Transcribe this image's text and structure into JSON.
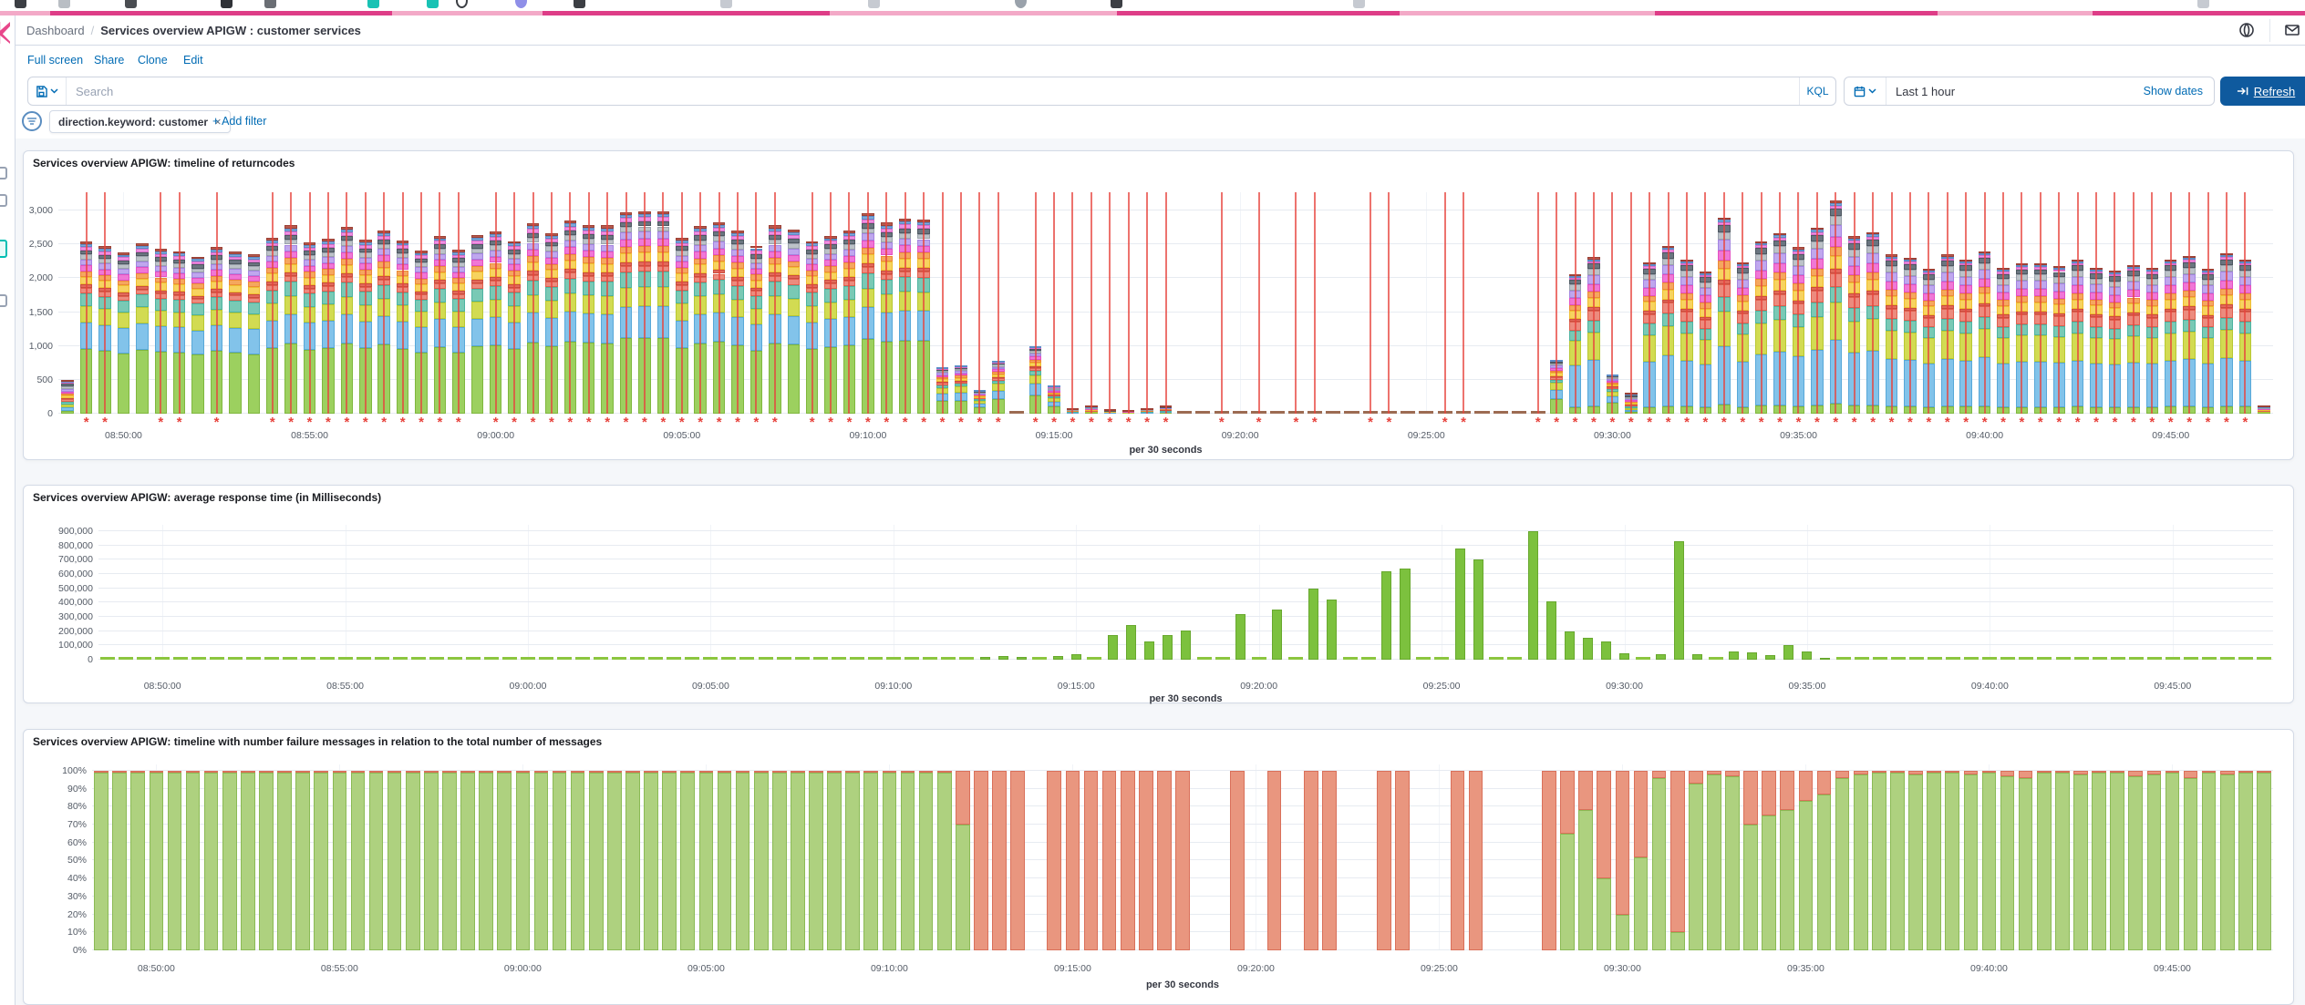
{
  "header": {
    "breadcrumb_root": "Dashboard",
    "breadcrumb_separator": "/",
    "breadcrumb_current": "Services overview APIGW : customer services"
  },
  "menu": {
    "items": [
      "Full screen",
      "Share",
      "Clone",
      "Edit"
    ]
  },
  "search": {
    "placeholder": "Search",
    "language": "KQL"
  },
  "timepicker": {
    "value": "Last 1 hour",
    "show_dates_label": "Show dates",
    "refresh_label": "Refresh"
  },
  "filters": {
    "pill": "direction.keyword: customer",
    "remove_icon": "×",
    "add_label": "+ Add filter"
  },
  "icons": {
    "saved_query": "floppy",
    "chevron": "chevron-down",
    "calendar": "calendar",
    "refresh": "arrow-bar",
    "globe": "circle",
    "envelope": "envelope",
    "filter": "filter-lines",
    "close": "×"
  },
  "colors": {
    "accent_pink": "#DE3D87",
    "link_blue": "#006BB4",
    "refresh_button": "#0F5A9E",
    "panel_border": "#D3DAE6",
    "dashboard_bg": "#F5F7FA",
    "annotation_red": "#E7443E"
  },
  "chart_data": [
    {
      "type": "bar",
      "stacked": true,
      "title": "Services overview APIGW: timeline of returncodes",
      "x_axis_title": "per 30 seconds",
      "start_time": "08:48:30",
      "interval_seconds": 30,
      "ymax": 3270,
      "annotation_marker": "*",
      "y_ticks": [
        [
          0,
          "0"
        ],
        [
          500,
          "500"
        ],
        [
          1000,
          "1,000"
        ],
        [
          1500,
          "1,500"
        ],
        [
          2000,
          "2,000"
        ],
        [
          2500,
          "2,500"
        ],
        [
          3000,
          "3,000"
        ]
      ],
      "x_ticks": [
        [
          3,
          "08:50:00"
        ],
        [
          13,
          "08:55:00"
        ],
        [
          23,
          "09:00:00"
        ],
        [
          33,
          "09:05:00"
        ],
        [
          43,
          "09:10:00"
        ],
        [
          53,
          "09:15:00"
        ],
        [
          63,
          "09:20:00"
        ],
        [
          73,
          "09:25:00"
        ],
        [
          83,
          "09:30:00"
        ],
        [
          93,
          "09:35:00"
        ],
        [
          103,
          "09:40:00"
        ],
        [
          113,
          "09:45:00"
        ]
      ],
      "series_palette": [
        {
          "name": "2xx-green",
          "fill": "#9CD05F",
          "border": "#7FB73E"
        },
        {
          "name": "lightblue",
          "fill": "#82C3EA",
          "border": "#58A8D8"
        },
        {
          "name": "olive",
          "fill": "#D2DB52",
          "border": "#B8C832"
        },
        {
          "name": "teal",
          "fill": "#79C9B5",
          "border": "#4EB3A0"
        },
        {
          "name": "salmon",
          "fill": "#EC8B7E",
          "border": "#E0604F"
        },
        {
          "name": "rose",
          "fill": "#E2695A",
          "border": "#C94C3E"
        },
        {
          "name": "yellow",
          "fill": "#F7D35F",
          "border": "#EFBE30"
        },
        {
          "name": "orange",
          "fill": "#F5A75E",
          "border": "#EC8A38"
        },
        {
          "name": "magenta",
          "fill": "#F077D6",
          "border": "#E351C2"
        },
        {
          "name": "lavender",
          "fill": "#BFA7EE",
          "border": "#A385E0"
        },
        {
          "name": "gray",
          "fill": "#BCC2C8",
          "border": "#9AA2AB"
        },
        {
          "name": "slate",
          "fill": "#6A7580",
          "border": "#4E5861"
        },
        {
          "name": "pink",
          "fill": "#EE92E2",
          "border": "#D86CC9"
        },
        {
          "name": "steel",
          "fill": "#7FA8D9",
          "border": "#5B8CC8"
        },
        {
          "name": "maroon",
          "fill": "#B55A4E",
          "border": "#9C4136"
        }
      ],
      "profiles": {
        "A": [
          0.375,
          0.155,
          0.095,
          0.075,
          0.03,
          0.02,
          0.045,
          0.033,
          0.035,
          0.035,
          0.027,
          0.025,
          0.02,
          0.015,
          0.015
        ],
        "B": [
          0.045,
          0.3,
          0.175,
          0.075,
          0.065,
          0.02,
          0.06,
          0.04,
          0.05,
          0.055,
          0.04,
          0.035,
          0.015,
          0.012,
          0.013
        ],
        "M": [
          0.28,
          0.17,
          0.13,
          0.06,
          0.05,
          0.02,
          0.06,
          0.04,
          0.05,
          0.05,
          0.04,
          0.03,
          0.01,
          0.01,
          0.0
        ],
        "S": [
          0.1,
          0.11,
          0.09,
          0.07,
          0.08,
          0.04,
          0.08,
          0.06,
          0.07,
          0.07,
          0.08,
          0.08,
          0.04,
          0.03,
          0.02
        ]
      },
      "bars": [
        [
          480,
          "S",
          0
        ],
        [
          2540,
          "A",
          1
        ],
        [
          2470,
          "A",
          1
        ],
        [
          2380,
          "A",
          0
        ],
        [
          2510,
          "A",
          0
        ],
        [
          2430,
          "A",
          1
        ],
        [
          2400,
          "A",
          1
        ],
        [
          2320,
          "A",
          0
        ],
        [
          2460,
          "A",
          1
        ],
        [
          2390,
          "A",
          0
        ],
        [
          2350,
          "A",
          0
        ],
        [
          2600,
          "A",
          1
        ],
        [
          2780,
          "A",
          1
        ],
        [
          2530,
          "A",
          1
        ],
        [
          2580,
          "A",
          1
        ],
        [
          2760,
          "A",
          1
        ],
        [
          2570,
          "A",
          1
        ],
        [
          2710,
          "A",
          1
        ],
        [
          2560,
          "A",
          1
        ],
        [
          2410,
          "A",
          1
        ],
        [
          2630,
          "A",
          1
        ],
        [
          2420,
          "A",
          1
        ],
        [
          2640,
          "A",
          0
        ],
        [
          2690,
          "A",
          1
        ],
        [
          2550,
          "A",
          1
        ],
        [
          2810,
          "A",
          1
        ],
        [
          2670,
          "A",
          1
        ],
        [
          2850,
          "A",
          1
        ],
        [
          2790,
          "A",
          1
        ],
        [
          2780,
          "A",
          1
        ],
        [
          2980,
          "A",
          1
        ],
        [
          2990,
          "A",
          1
        ],
        [
          2990,
          "A",
          1
        ],
        [
          2600,
          "A",
          1
        ],
        [
          2770,
          "A",
          1
        ],
        [
          2830,
          "A",
          1
        ],
        [
          2700,
          "A",
          1
        ],
        [
          2480,
          "A",
          1
        ],
        [
          2780,
          "A",
          1
        ],
        [
          2720,
          "A",
          0
        ],
        [
          2550,
          "A",
          1
        ],
        [
          2630,
          "A",
          1
        ],
        [
          2700,
          "A",
          1
        ],
        [
          2960,
          "A",
          1
        ],
        [
          2820,
          "A",
          1
        ],
        [
          2880,
          "A",
          1
        ],
        [
          2870,
          "A",
          1
        ],
        [
          660,
          "M",
          1
        ],
        [
          690,
          "M",
          1
        ],
        [
          330,
          "M",
          1
        ],
        [
          760,
          "M",
          1
        ],
        [
          20,
          "D",
          0
        ],
        [
          980,
          "M",
          1
        ],
        [
          390,
          "M",
          1
        ],
        [
          60,
          "S",
          1
        ],
        [
          90,
          "S",
          1
        ],
        [
          40,
          "S",
          1
        ],
        [
          30,
          "S",
          1
        ],
        [
          60,
          "S",
          1
        ],
        [
          100,
          "S",
          1
        ],
        [
          20,
          "D",
          0
        ],
        [
          20,
          "D",
          0
        ],
        [
          20,
          "D",
          1
        ],
        [
          20,
          "D",
          0
        ],
        [
          20,
          "D",
          1
        ],
        [
          20,
          "D",
          0
        ],
        [
          20,
          "D",
          1
        ],
        [
          20,
          "D",
          1
        ],
        [
          20,
          "D",
          0
        ],
        [
          20,
          "D",
          0
        ],
        [
          20,
          "D",
          1
        ],
        [
          20,
          "D",
          1
        ],
        [
          20,
          "D",
          0
        ],
        [
          20,
          "D",
          0
        ],
        [
          20,
          "D",
          1
        ],
        [
          20,
          "D",
          1
        ],
        [
          20,
          "D",
          0
        ],
        [
          20,
          "D",
          0
        ],
        [
          20,
          "D",
          0
        ],
        [
          20,
          "D",
          1
        ],
        [
          780,
          "M",
          1
        ],
        [
          2060,
          "B",
          1
        ],
        [
          2310,
          "B",
          1
        ],
        [
          560,
          "M",
          1
        ],
        [
          290,
          "S",
          1
        ],
        [
          2230,
          "B",
          1
        ],
        [
          2480,
          "B",
          1
        ],
        [
          2280,
          "B",
          1
        ],
        [
          2100,
          "B",
          1
        ],
        [
          2900,
          "B",
          1
        ],
        [
          2240,
          "B",
          1
        ],
        [
          2550,
          "B",
          1
        ],
        [
          2670,
          "B",
          1
        ],
        [
          2460,
          "B",
          1
        ],
        [
          2750,
          "B",
          1
        ],
        [
          3150,
          "B",
          1
        ],
        [
          2620,
          "B",
          1
        ],
        [
          2680,
          "B",
          1
        ],
        [
          2350,
          "B",
          1
        ],
        [
          2300,
          "B",
          1
        ],
        [
          2140,
          "B",
          1
        ],
        [
          2350,
          "B",
          1
        ],
        [
          2280,
          "B",
          1
        ],
        [
          2400,
          "B",
          1
        ],
        [
          2150,
          "B",
          1
        ],
        [
          2220,
          "B",
          1
        ],
        [
          2220,
          "B",
          1
        ],
        [
          2180,
          "B",
          1
        ],
        [
          2280,
          "B",
          1
        ],
        [
          2160,
          "B",
          1
        ],
        [
          2110,
          "B",
          1
        ],
        [
          2200,
          "B",
          1
        ],
        [
          2150,
          "B",
          1
        ],
        [
          2280,
          "B",
          1
        ],
        [
          2330,
          "B",
          1
        ],
        [
          2140,
          "B",
          1
        ],
        [
          2370,
          "B",
          1
        ],
        [
          2280,
          "B",
          1
        ],
        [
          90,
          "S",
          0
        ]
      ],
      "dash_color": "#9C6B52",
      "bar_width": 0.66
    },
    {
      "type": "bar",
      "stacked": false,
      "title": "Services overview APIGW: average response time (in Milliseconds)",
      "x_axis_title": "per 30 seconds",
      "start_time": "08:48:30",
      "interval_seconds": 30,
      "ymax": 945000,
      "bar_color": "#7CC13E",
      "bar_border": "#68A82E",
      "dash_color": "#8CC63F",
      "bar_width": 0.55,
      "y_ticks": [
        [
          0,
          "0"
        ],
        [
          100000,
          "100,000"
        ],
        [
          200000,
          "200,000"
        ],
        [
          300000,
          "300,000"
        ],
        [
          400000,
          "400,000"
        ],
        [
          500000,
          "500,000"
        ],
        [
          600000,
          "600,000"
        ],
        [
          700000,
          "700,000"
        ],
        [
          800000,
          "800,000"
        ],
        [
          900000,
          "900,000"
        ]
      ],
      "x_ticks": [
        [
          3,
          "08:50:00"
        ],
        [
          13,
          "08:55:00"
        ],
        [
          23,
          "09:00:00"
        ],
        [
          33,
          "09:05:00"
        ],
        [
          43,
          "09:10:00"
        ],
        [
          53,
          "09:15:00"
        ],
        [
          63,
          "09:20:00"
        ],
        [
          73,
          "09:25:00"
        ],
        [
          83,
          "09:30:00"
        ],
        [
          93,
          "09:35:00"
        ],
        [
          103,
          "09:40:00"
        ],
        [
          113,
          "09:45:00"
        ]
      ],
      "values": [
        0,
        0,
        0,
        0,
        0,
        0,
        0,
        0,
        0,
        0,
        0,
        0,
        0,
        0,
        0,
        0,
        0,
        0,
        0,
        0,
        0,
        0,
        0,
        0,
        0,
        0,
        0,
        0,
        0,
        0,
        0,
        0,
        0,
        0,
        0,
        0,
        0,
        0,
        0,
        0,
        0,
        0,
        0,
        0,
        0,
        0,
        0,
        0,
        20000,
        28000,
        22000,
        0,
        27000,
        36000,
        0,
        175000,
        242000,
        130000,
        172000,
        202000,
        0,
        0,
        320000,
        0,
        350000,
        0,
        500000,
        420000,
        0,
        0,
        620000,
        640000,
        0,
        0,
        780000,
        700000,
        0,
        0,
        900000,
        410000,
        195000,
        155000,
        130000,
        45000,
        0,
        40000,
        830000,
        38000,
        0,
        55000,
        50000,
        35000,
        105000,
        60000,
        15000,
        0,
        0,
        0,
        0,
        0,
        0,
        0,
        0,
        0,
        0,
        0,
        0,
        0,
        0,
        0,
        0,
        0,
        0,
        0,
        0,
        0,
        0,
        0,
        0
      ]
    },
    {
      "type": "bar",
      "stacked": true,
      "percent": true,
      "title": "Services overview APIGW: timeline with number failure messages in relation to the total number of messages",
      "x_axis_title": "per 30 seconds",
      "start_time": "08:48:30",
      "interval_seconds": 30,
      "ymax": 1.035,
      "success_color": "#AED17F",
      "success_border": "#8BBA55",
      "failure_color": "#E9967F",
      "failure_border": "#D9705A",
      "bar_width": 0.78,
      "y_ticks": [
        [
          0,
          "0%"
        ],
        [
          0.1,
          "10%"
        ],
        [
          0.2,
          "20%"
        ],
        [
          0.3,
          "30%"
        ],
        [
          0.4,
          "40%"
        ],
        [
          0.5,
          "50%"
        ],
        [
          0.6,
          "60%"
        ],
        [
          0.7,
          "70%"
        ],
        [
          0.8,
          "80%"
        ],
        [
          0.9,
          "90%"
        ],
        [
          1,
          "100%"
        ]
      ],
      "x_ticks": [
        [
          3,
          "08:50:00"
        ],
        [
          13,
          "08:55:00"
        ],
        [
          23,
          "09:00:00"
        ],
        [
          33,
          "09:05:00"
        ],
        [
          43,
          "09:10:00"
        ],
        [
          53,
          "09:15:00"
        ],
        [
          63,
          "09:20:00"
        ],
        [
          73,
          "09:25:00"
        ],
        [
          83,
          "09:30:00"
        ],
        [
          93,
          "09:35:00"
        ],
        [
          103,
          "09:40:00"
        ],
        [
          113,
          "09:45:00"
        ]
      ],
      "success_fraction": [
        0.99,
        0.99,
        0.99,
        0.99,
        0.99,
        0.99,
        0.99,
        0.99,
        0.99,
        0.99,
        0.99,
        0.99,
        0.99,
        0.99,
        0.99,
        0.99,
        0.99,
        0.99,
        0.99,
        0.99,
        0.99,
        0.99,
        0.99,
        0.99,
        0.99,
        0.99,
        0.99,
        0.99,
        0.99,
        0.99,
        0.99,
        0.99,
        0.99,
        0.99,
        0.99,
        0.99,
        0.99,
        0.99,
        0.99,
        0.99,
        0.99,
        0.99,
        0.99,
        0.99,
        0.99,
        0.99,
        0.99,
        0.7,
        0,
        0,
        0,
        null,
        0,
        0,
        0,
        0,
        0,
        0,
        0,
        0,
        null,
        null,
        0,
        null,
        0,
        null,
        0,
        0,
        null,
        null,
        0,
        0,
        null,
        null,
        0,
        0,
        null,
        null,
        null,
        0,
        0.65,
        0.78,
        0.4,
        0.2,
        0.52,
        0.96,
        0.1,
        0.93,
        0.98,
        0.97,
        0.7,
        0.75,
        0.78,
        0.83,
        0.87,
        0.96,
        0.98,
        0.99,
        0.99,
        0.98,
        0.99,
        0.99,
        0.98,
        0.99,
        0.97,
        0.96,
        0.99,
        0.99,
        0.98,
        0.99,
        0.99,
        0.97,
        0.98,
        0.99,
        0.96,
        0.99,
        0.98,
        0.99,
        0.99
      ]
    }
  ]
}
